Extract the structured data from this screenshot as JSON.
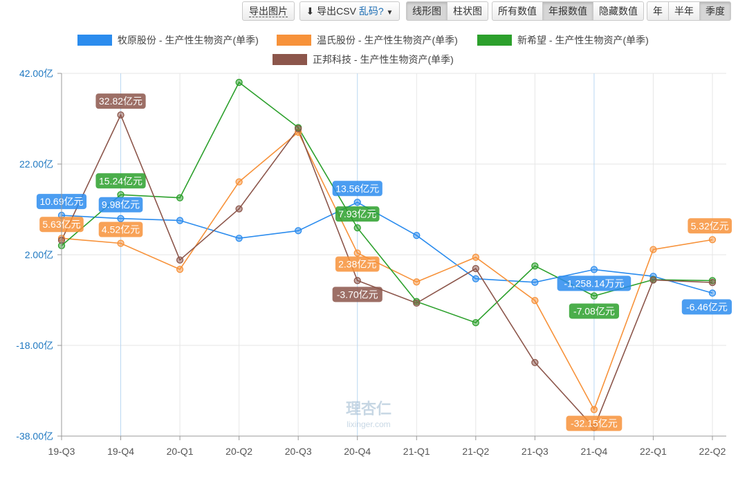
{
  "toolbar": {
    "export_image": "导出图片",
    "export_csv": "导出CSV",
    "garbled": "乱码?",
    "chart_types": [
      "线形图",
      "柱状图"
    ],
    "value_modes": [
      "所有数值",
      "年报数值",
      "隐藏数值"
    ],
    "periods": [
      "年",
      "半年",
      "季度"
    ]
  },
  "colors": {
    "muyuan": "#2b8cee",
    "wens": "#f7923a",
    "newhope": "#2ca02c",
    "zhengbang": "#8c564b",
    "axis_label": "#1f78c1",
    "grid": "#e6e6e6"
  },
  "watermark": {
    "logo": "理杏仁",
    "site": "lixinger.com"
  },
  "chart_data": {
    "type": "line",
    "x": [
      "19-Q3",
      "19-Q4",
      "20-Q1",
      "20-Q2",
      "20-Q3",
      "20-Q4",
      "21-Q1",
      "21-Q2",
      "21-Q3",
      "21-Q4",
      "22-Q1",
      "22-Q2"
    ],
    "y_ticks": [
      "42.00亿",
      "22.00亿",
      "2.00亿",
      "-18.00亿",
      "-38.00亿"
    ],
    "ylim": [
      -38,
      42
    ],
    "grid": true,
    "legend_position": "top",
    "series": [
      {
        "name": "牧原股份 - 生产性生物资产(单季)",
        "color_key": "muyuan",
        "values": [
          10.69,
          9.98,
          9.55,
          5.63,
          7.3,
          13.56,
          6.26,
          -3.3,
          -4.08,
          -1.26,
          -2.77,
          -6.46
        ]
      },
      {
        "name": "温氏股份 - 生产性生物资产(单季)",
        "color_key": "wens",
        "values": [
          5.63,
          4.52,
          -1.22,
          18.07,
          29.02,
          2.38,
          -4.0,
          1.44,
          -8.1,
          -32.15,
          3.15,
          5.32
        ]
      },
      {
        "name": "新希望 - 生产性生物资产(单季)",
        "color_key": "newhope",
        "values": [
          4.0,
          15.24,
          14.56,
          40.01,
          30.04,
          7.93,
          -8.33,
          -12.98,
          -0.48,
          -7.08,
          -3.5,
          -3.71
        ]
      },
      {
        "name": "正邦科技 - 生产性生物资产(单季)",
        "color_key": "zhengbang",
        "values": [
          5.2,
          32.82,
          0.84,
          12.12,
          29.8,
          -3.7,
          -8.67,
          -1.05,
          -21.78,
          -36.13,
          -3.57,
          -4.12
        ]
      }
    ],
    "data_labels": [
      {
        "series": 0,
        "index": 0,
        "text": "10.69亿元"
      },
      {
        "series": 0,
        "index": 1,
        "text": "9.98亿元"
      },
      {
        "series": 0,
        "index": 5,
        "text": "13.56亿元"
      },
      {
        "series": 0,
        "index": 9,
        "text": "-1,258.14万元"
      },
      {
        "series": 0,
        "index": 11,
        "text": "-6.46亿元"
      },
      {
        "series": 1,
        "index": 0,
        "text": "5.63亿元"
      },
      {
        "series": 1,
        "index": 1,
        "text": "4.52亿元"
      },
      {
        "series": 1,
        "index": 5,
        "text": "2.38亿元"
      },
      {
        "series": 1,
        "index": 9,
        "text": "-32.15亿元"
      },
      {
        "series": 1,
        "index": 11,
        "text": "5.32亿元"
      },
      {
        "series": 2,
        "index": 1,
        "text": "15.24亿元"
      },
      {
        "series": 2,
        "index": 5,
        "text": "7.93亿元"
      },
      {
        "series": 2,
        "index": 9,
        "text": "-7.08亿元"
      },
      {
        "series": 3,
        "index": 1,
        "text": "32.82亿元"
      },
      {
        "series": 3,
        "index": 5,
        "text": "-3.70亿元"
      }
    ]
  }
}
